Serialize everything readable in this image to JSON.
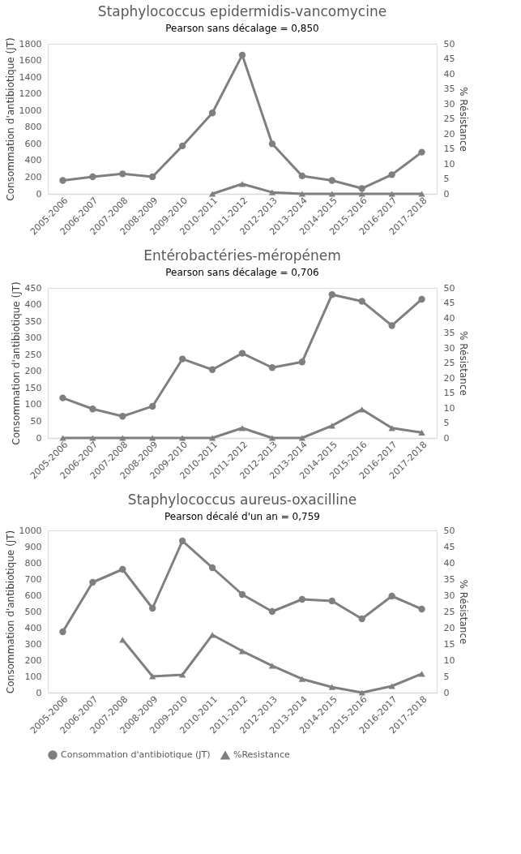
{
  "chart_data": [
    {
      "type": "line",
      "title": "Staphylococcus epidermidis-vancomycine",
      "subtitle": "Pearson sans décalage = 0,850",
      "categories": [
        "2005-2006",
        "2006-2007",
        "2007-2008",
        "2008-2009",
        "2009-2010",
        "2010-2011",
        "2011-2012",
        "2012-2013",
        "2013-2014",
        "2014-2015",
        "2015-2016",
        "2016-2017",
        "2017-2018"
      ],
      "ylabel": "Consommation d'antibiotique (JT)",
      "y2label": "% Résistance",
      "ylim": [
        0,
        1800
      ],
      "yticks": [
        0,
        200,
        400,
        600,
        800,
        1000,
        1200,
        1400,
        1600,
        1800
      ],
      "y2lim": [
        0,
        50
      ],
      "y2ticks": [
        0,
        5,
        10,
        15,
        20,
        25,
        30,
        35,
        40,
        45,
        50
      ],
      "grid": false,
      "legend": false,
      "series": [
        {
          "color": "#7f7f7f",
          "marker": "circle",
          "values": [
            160,
            205,
            240,
            205,
            575,
            970,
            1665,
            600,
            215,
            160,
            65,
            230,
            500
          ]
        },
        {
          "color": "#7f7f7f",
          "marker": "triangle",
          "axis": "y2",
          "values": [
            null,
            null,
            null,
            null,
            null,
            0,
            3.3,
            0.5,
            0,
            0,
            0,
            0,
            0
          ]
        }
      ]
    },
    {
      "type": "line",
      "title": "Entérobactéries-méropénem",
      "subtitle": "Pearson sans décalage = 0,706",
      "categories": [
        "2005-2006",
        "2006-2007",
        "2007-2008",
        "2008-2009",
        "2009-2010",
        "2010-2011",
        "2011-2012",
        "2012-2013",
        "2013-2014",
        "2014-2015",
        "2015-2016",
        "2016-2017",
        "2017-2018"
      ],
      "ylabel": "Consommation d'antibiotique (JT)",
      "y2label": "% Résistance",
      "ylim": [
        0,
        450
      ],
      "yticks": [
        0,
        50,
        100,
        150,
        200,
        250,
        300,
        350,
        400,
        450
      ],
      "y2lim": [
        0,
        50
      ],
      "y2ticks": [
        0,
        5,
        10,
        15,
        20,
        25,
        30,
        35,
        40,
        45,
        50
      ],
      "grid": false,
      "legend": false,
      "series": [
        {
          "color": "#7f7f7f",
          "marker": "circle",
          "values": [
            120,
            87,
            65,
            95,
            237,
            205,
            254,
            211,
            228,
            430,
            410,
            337,
            416
          ]
        },
        {
          "color": "#7f7f7f",
          "marker": "triangle",
          "axis": "y2",
          "values": [
            0,
            0,
            0,
            0,
            0,
            0,
            3.3,
            0,
            0,
            4.1,
            9.5,
            3.3,
            1.8
          ]
        }
      ]
    },
    {
      "type": "line",
      "title": "Staphylococcus aureus-oxacilline",
      "subtitle": "Pearson décalé d'un an = 0,759",
      "categories": [
        "2005-2006",
        "2006-2007",
        "2007-2008",
        "2008-2009",
        "2009-2010",
        "2010-2011",
        "2011-2012",
        "2012-2013",
        "2013-2014",
        "2014-2015",
        "2015-2016",
        "2016-2017",
        "2017-2018"
      ],
      "ylabel": "Consommation d'antibiotique (JT)",
      "y2label": "% Résistance",
      "ylim": [
        0,
        1000
      ],
      "yticks": [
        0,
        100,
        200,
        300,
        400,
        500,
        600,
        700,
        800,
        900,
        1000
      ],
      "y2lim": [
        0,
        50
      ],
      "y2ticks": [
        0,
        5,
        10,
        15,
        20,
        25,
        30,
        35,
        40,
        45,
        50
      ],
      "grid": false,
      "legend": "bottom",
      "series": [
        {
          "name": "Consommation d'antibiotique (JT)",
          "color": "#7f7f7f",
          "marker": "circle",
          "values": [
            375,
            680,
            760,
            520,
            935,
            770,
            605,
            500,
            575,
            565,
            455,
            595,
            515
          ]
        },
        {
          "name": "%Resistance",
          "color": "#7f7f7f",
          "marker": "triangle",
          "axis": "y2",
          "values": [
            null,
            null,
            16.3,
            5,
            5.5,
            17.8,
            12.8,
            8.3,
            4.2,
            1.7,
            0,
            2,
            5.8
          ]
        }
      ]
    }
  ]
}
